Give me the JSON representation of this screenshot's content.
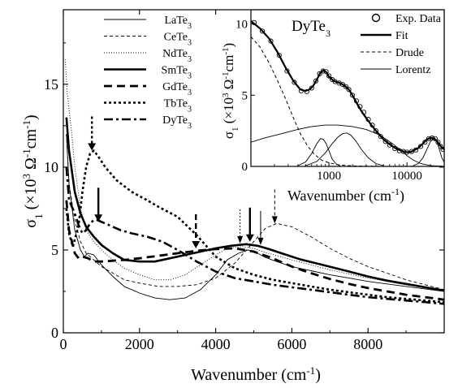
{
  "chart_data": [
    {
      "type": "line",
      "xlabel": "Wavenumber (cm",
      "xlabel_sup": "-1",
      "xlabel_end": ")",
      "ylabel": "σ",
      "ylabel_sub": "1",
      "ylabel_units": " (×10",
      "ylabel_sup1": "3",
      "ylabel_units2": " Ω",
      "ylabel_sup2": "-1",
      "ylabel_units3": "cm",
      "ylabel_sup3": "-1",
      "ylabel_end": ")",
      "xlim": [
        0,
        10000
      ],
      "ylim": [
        0,
        19.5
      ],
      "xticks": [
        0,
        2000,
        4000,
        6000,
        8000
      ],
      "yticks": [
        0,
        5,
        10,
        15
      ],
      "grid": false,
      "legend_position": "top-center",
      "series": [
        {
          "name": "LaTe",
          "sub": "3",
          "style": "thin",
          "x": [
            80,
            150,
            300,
            450,
            550,
            650,
            800,
            1000,
            1300,
            1600,
            2000,
            2400,
            2800,
            3200,
            3600,
            4000,
            4300,
            4600,
            4850,
            5100,
            5300,
            5600,
            6000,
            6500,
            7000,
            7500,
            8000,
            8500,
            9000,
            9500,
            10000
          ],
          "y": [
            12.0,
            9.0,
            6.2,
            5.0,
            4.6,
            4.8,
            4.7,
            4.1,
            3.4,
            2.8,
            2.4,
            2.1,
            2.0,
            2.1,
            2.6,
            3.5,
            4.4,
            4.8,
            5.0,
            4.8,
            4.55,
            4.3,
            4.0,
            3.75,
            3.5,
            3.3,
            3.1,
            2.95,
            2.8,
            2.65,
            2.5
          ]
        },
        {
          "name": "CeTe",
          "sub": "3",
          "style": "dash-thin",
          "x": [
            80,
            150,
            300,
            450,
            600,
            800,
            1000,
            1300,
            1600,
            2000,
            2500,
            3000,
            3500,
            4000,
            4500,
            5000,
            5300,
            5600,
            6000,
            6500,
            7000,
            7500,
            8000,
            8500,
            9000,
            9500,
            10000
          ],
          "y": [
            12.0,
            9.0,
            6.8,
            5.5,
            4.8,
            4.4,
            4.0,
            3.6,
            3.2,
            3.0,
            2.8,
            2.8,
            2.9,
            3.3,
            4.2,
            5.5,
            6.3,
            6.6,
            6.4,
            5.8,
            5.1,
            4.5,
            4.0,
            3.6,
            3.2,
            2.9,
            2.6
          ]
        },
        {
          "name": "NdTe",
          "sub": "3",
          "style": "dot-thin",
          "x": [
            50,
            100,
            200,
            300,
            450,
            600,
            800,
            1000,
            1300,
            1600,
            2000,
            2400,
            2800,
            3200,
            3600,
            4000,
            4300,
            4700,
            5000,
            5300,
            5700,
            6000,
            6500,
            7000,
            7500,
            8000,
            8500,
            9000,
            9500,
            10000
          ],
          "y": [
            16.5,
            14.5,
            12.5,
            10.0,
            7.5,
            6.2,
            5.5,
            5.0,
            4.4,
            3.9,
            3.5,
            3.2,
            3.2,
            3.5,
            4.1,
            4.7,
            5.1,
            5.2,
            5.1,
            4.85,
            4.6,
            4.4,
            4.1,
            3.8,
            3.55,
            3.3,
            3.1,
            2.9,
            2.7,
            2.5
          ]
        },
        {
          "name": "SmTe",
          "sub": "3",
          "style": "thick",
          "x": [
            80,
            150,
            300,
            450,
            600,
            800,
            1000,
            1300,
            1600,
            2000,
            2400,
            2800,
            3200,
            3600,
            4000,
            4400,
            4800,
            5100,
            5400,
            5800,
            6200,
            6800,
            7500,
            8000,
            8500,
            9000,
            9500,
            10000
          ],
          "y": [
            13.0,
            11.0,
            8.5,
            7.2,
            6.4,
            5.8,
            5.3,
            4.8,
            4.4,
            4.3,
            4.3,
            4.5,
            4.7,
            4.9,
            5.1,
            5.25,
            5.35,
            5.25,
            5.05,
            4.75,
            4.45,
            4.1,
            3.7,
            3.4,
            3.15,
            2.95,
            2.75,
            2.55
          ]
        },
        {
          "name": "GdTe",
          "sub": "3",
          "style": "dash-thick",
          "x": [
            80,
            150,
            300,
            400,
            500,
            650,
            800,
            1000,
            1300,
            1600,
            2000,
            2500,
            3000,
            3500,
            4000,
            4500,
            5000,
            5500,
            6000,
            6500,
            7000,
            7500,
            8000,
            8500,
            9000,
            9500,
            10000
          ],
          "y": [
            8.0,
            6.2,
            4.8,
            4.5,
            4.6,
            4.5,
            4.3,
            4.3,
            4.35,
            4.4,
            4.5,
            4.65,
            4.8,
            4.95,
            5.05,
            5.1,
            4.9,
            4.5,
            4.0,
            3.6,
            3.25,
            2.95,
            2.7,
            2.5,
            2.3,
            2.15,
            2.0
          ]
        },
        {
          "name": "TbTe",
          "sub": "3",
          "style": "dot-thick",
          "x": [
            80,
            150,
            250,
            400,
            500,
            600,
            700,
            800,
            900,
            1100,
            1400,
            1800,
            2200,
            2500,
            3000,
            3500,
            4000,
            4500,
            5000,
            5500,
            6000,
            6500,
            7000,
            7500,
            8000,
            8500,
            9000,
            9500,
            10000
          ],
          "y": [
            7.5,
            6.0,
            5.2,
            6.5,
            8.5,
            10.0,
            10.8,
            11.0,
            10.7,
            10.0,
            9.2,
            8.5,
            8.0,
            7.6,
            7.0,
            5.9,
            4.6,
            3.9,
            3.5,
            3.2,
            3.0,
            2.8,
            2.6,
            2.45,
            2.3,
            2.15,
            2.05,
            1.95,
            1.85
          ]
        },
        {
          "name": "DyTe",
          "sub": "3",
          "style": "dashdot-thick",
          "x": [
            80,
            150,
            300,
            400,
            500,
            600,
            700,
            800,
            900,
            1000,
            1200,
            1500,
            1800,
            2200,
            2600,
            3000,
            3500,
            4000,
            4500,
            5000,
            5500,
            6000,
            6500,
            7000,
            7500,
            8000,
            8500,
            9000,
            9500,
            10000
          ],
          "y": [
            10.0,
            8.0,
            7.2,
            6.5,
            6.0,
            6.2,
            6.6,
            6.8,
            6.8,
            6.7,
            6.5,
            6.2,
            6.0,
            5.8,
            5.5,
            5.0,
            4.3,
            3.7,
            3.3,
            3.1,
            2.9,
            2.75,
            2.6,
            2.45,
            2.3,
            2.15,
            2.05,
            1.95,
            1.85,
            1.75
          ]
        }
      ],
      "annotations": {
        "arrows_down": [
          {
            "x": 750,
            "y": 10.9,
            "style": "dotted-thick"
          },
          {
            "x": 920,
            "y": 6.6,
            "style": "solid-thick"
          },
          {
            "x": 3480,
            "y": 5.0,
            "style": "dashed-thick"
          },
          {
            "x": 4640,
            "y": 5.3,
            "style": "dotted-thin"
          },
          {
            "x": 4900,
            "y": 5.4,
            "style": "solid-thick"
          },
          {
            "x": 5180,
            "y": 5.2,
            "style": "solid-thin"
          },
          {
            "x": 5550,
            "y": 6.5,
            "style": "dashed-thin"
          }
        ]
      }
    },
    {
      "type": "line",
      "title": "DyTe",
      "title_sub": "3",
      "xlabel": "Wavenumber (cm",
      "xlabel_sup": "-1",
      "xlabel_end": ")",
      "ylabel": "σ",
      "ylabel_sub": "1",
      "ylabel_units": " (×10",
      "ylabel_sup1": "3",
      "ylabel_units2": " Ω",
      "ylabel_sup2": "-1",
      "ylabel_units3": "cm",
      "ylabel_sup3": "-1",
      "ylabel_end": ")",
      "xscale": "log",
      "xlim": [
        100,
        30000
      ],
      "ylim": [
        0,
        11
      ],
      "xticks": [
        1000,
        10000
      ],
      "yticks": [
        0,
        5,
        10
      ],
      "legend_position": "top-right",
      "legend": [
        {
          "label": "Exp. Data",
          "style": "open-circle"
        },
        {
          "label": "Fit",
          "style": "thick"
        },
        {
          "label": "Drude",
          "style": "dashed"
        },
        {
          "label": "Lorentz",
          "style": "thin"
        }
      ],
      "fit": {
        "x": [
          100,
          130,
          170,
          220,
          280,
          350,
          430,
          500,
          560,
          620,
          700,
          780,
          850,
          930,
          1000,
          1150,
          1300,
          1450,
          1600,
          1800,
          2000,
          2300,
          2600,
          3000,
          3500,
          4000,
          5000,
          6000,
          7000,
          8000,
          9000,
          10000,
          11000,
          12000,
          14000,
          16000,
          18000,
          20000,
          22000,
          24000,
          26000,
          28000,
          30000
        ],
        "y": [
          10.2,
          9.7,
          9.0,
          8.0,
          6.9,
          6.0,
          5.4,
          5.3,
          5.4,
          5.6,
          6.1,
          6.6,
          6.75,
          6.6,
          6.3,
          6.0,
          5.9,
          5.8,
          5.65,
          5.4,
          5.0,
          4.4,
          3.9,
          3.4,
          2.9,
          2.5,
          1.9,
          1.55,
          1.3,
          1.15,
          1.05,
          1.0,
          1.0,
          1.1,
          1.3,
          1.6,
          1.9,
          2.0,
          2.0,
          1.8,
          1.55,
          1.3,
          1.2
        ]
      },
      "drude": {
        "x": [
          100,
          130,
          170,
          220,
          280,
          350,
          430,
          530,
          650,
          800,
          1000,
          1300,
          1700,
          2200,
          3000,
          4000,
          6000,
          10000,
          20000,
          30000
        ],
        "y": [
          9.1,
          8.4,
          7.3,
          6.0,
          4.7,
          3.4,
          2.3,
          1.45,
          0.85,
          0.45,
          0.25,
          0.12,
          0.06,
          0.03,
          0.015,
          0.01,
          0.005,
          0.003,
          0.001,
          0.0
        ]
      },
      "lorentz": [
        {
          "x": [
            100,
            150,
            250,
            400,
            600,
            900,
            1300,
            2000,
            3000,
            4500,
            6500,
            8500,
            10000,
            12000,
            15000,
            20000,
            30000
          ],
          "y": [
            1.7,
            2.0,
            2.3,
            2.6,
            2.8,
            2.9,
            2.9,
            2.8,
            2.6,
            2.2,
            1.6,
            1.1,
            0.75,
            0.45,
            0.2,
            0.05,
            0.0
          ]
        },
        {
          "x": [
            400,
            500,
            600,
            700,
            780,
            850,
            920,
            1000,
            1100,
            1250,
            1400
          ],
          "y": [
            0.05,
            0.3,
            0.9,
            1.6,
            1.95,
            1.9,
            1.6,
            1.1,
            0.5,
            0.15,
            0.03
          ]
        },
        {
          "x": [
            500,
            700,
            900,
            1100,
            1300,
            1500,
            1700,
            1900,
            2200,
            2600,
            3200,
            4000,
            5000
          ],
          "y": [
            0.05,
            0.35,
            0.95,
            1.6,
            2.05,
            2.3,
            2.35,
            2.2,
            1.8,
            1.2,
            0.6,
            0.2,
            0.05
          ]
        },
        {
          "x": [
            12000,
            14000,
            16000,
            18000,
            20000,
            22000,
            24000,
            26000,
            28000,
            30000
          ],
          "y": [
            0.05,
            0.2,
            0.6,
            1.2,
            1.75,
            2.0,
            1.8,
            1.2,
            0.6,
            0.3
          ]
        }
      ],
      "exp_points": {
        "x": [
          110,
          140,
          180,
          230,
          290,
          360,
          440,
          520,
          600,
          680,
          760,
          840,
          920,
          1000,
          1100,
          1200,
          1350,
          1500,
          1650,
          1800,
          2000,
          2250,
          2500,
          2800,
          3200,
          3600,
          4000,
          4600,
          5300,
          6000,
          7000,
          8000,
          9000,
          10000,
          11500,
          13000,
          15000,
          17000,
          19000,
          21000,
          23000,
          25000,
          27000,
          29000
        ],
        "y": [
          10.1,
          9.5,
          8.8,
          7.8,
          6.7,
          5.9,
          5.3,
          5.25,
          5.5,
          6.0,
          6.5,
          6.7,
          6.65,
          6.35,
          6.1,
          5.95,
          5.85,
          5.75,
          5.6,
          5.4,
          5.0,
          4.6,
          4.2,
          3.8,
          3.3,
          2.9,
          2.5,
          2.1,
          1.75,
          1.5,
          1.25,
          1.1,
          1.05,
          1.0,
          1.05,
          1.15,
          1.4,
          1.7,
          1.95,
          2.0,
          1.95,
          1.7,
          1.4,
          1.2
        ]
      }
    }
  ]
}
